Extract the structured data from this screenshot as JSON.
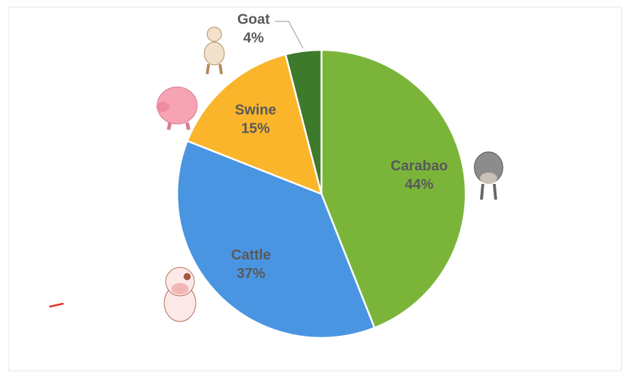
{
  "chart_data": {
    "type": "pie",
    "categories": [
      "Carabao",
      "Cattle",
      "Swine",
      "Goat"
    ],
    "values": [
      44,
      37,
      15,
      4
    ],
    "value_labels": [
      "44%",
      "37%",
      "15%",
      "4%"
    ],
    "colors": [
      "#7ab53a",
      "#4a95e2",
      "#fbb52b",
      "#3e7a2c"
    ]
  }
}
